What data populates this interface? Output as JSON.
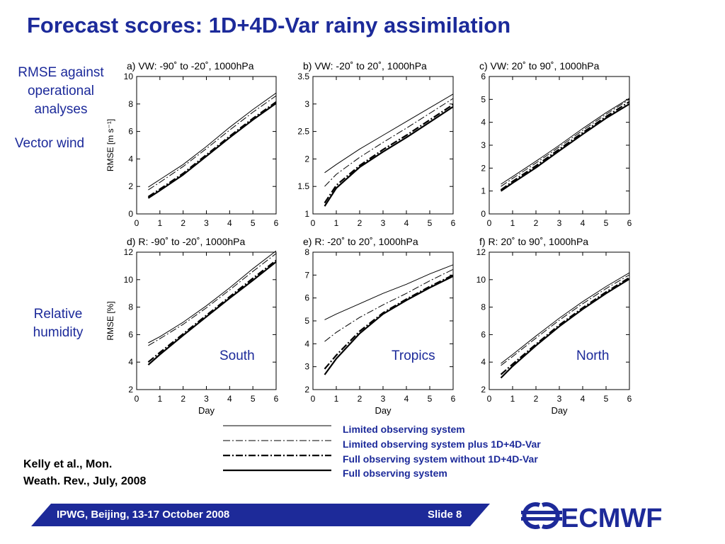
{
  "slide": {
    "title": "Forecast scores: 1D+4D-Var rainy assimilation",
    "row_labels": {
      "rmse": "RMSE against operational analyses",
      "rmse_lines": [
        "RMSE against",
        "operational",
        "analyses"
      ],
      "vector_wind": "Vector wind",
      "humidity_lines": [
        "Relative",
        "humidity"
      ]
    },
    "regions": [
      "South",
      "Tropics",
      "North"
    ],
    "reference_lines": [
      "Kelly et al., Mon.",
      "Weath. Rev., July, 2008"
    ],
    "footer": {
      "left": "IPWG, Beijing, 13-17 October 2008",
      "right": "Slide 8"
    },
    "logo_text": "ECMWF",
    "colors": {
      "accent": "#1c2a9a",
      "footer": "#1d2a99"
    }
  },
  "chart_data": [
    {
      "type": "line",
      "title": "a) VW: -90˚ to -20˚, 1000hPa",
      "xlabel": "",
      "ylabel": "RMSE [m s⁻¹]",
      "xlim": [
        0,
        6
      ],
      "ylim": [
        0,
        10
      ],
      "xticks": [
        0,
        1,
        2,
        3,
        4,
        5,
        6
      ],
      "yticks": [
        0,
        2,
        4,
        6,
        8,
        10
      ],
      "x": [
        0.5,
        1,
        2,
        3,
        4,
        5,
        6
      ],
      "series": [
        {
          "name": "Limited observing system",
          "values": [
            1.95,
            2.5,
            3.6,
            4.9,
            6.3,
            7.6,
            8.8
          ]
        },
        {
          "name": "Limited observing system plus 1D+4D-Var",
          "values": [
            1.75,
            2.3,
            3.45,
            4.75,
            6.1,
            7.4,
            8.6
          ]
        },
        {
          "name": "Full observing system without 1D+4D-Var",
          "values": [
            1.25,
            1.8,
            2.95,
            4.3,
            5.65,
            6.95,
            8.15
          ]
        },
        {
          "name": "Full observing system",
          "values": [
            1.15,
            1.7,
            2.85,
            4.2,
            5.55,
            6.85,
            8.05
          ]
        }
      ]
    },
    {
      "type": "line",
      "title": "b) VW: -20˚ to 20˚, 1000hPa",
      "xlabel": "",
      "ylabel": "",
      "xlim": [
        0,
        6
      ],
      "ylim": [
        1.0,
        3.5
      ],
      "xticks": [
        0,
        1,
        2,
        3,
        4,
        5,
        6
      ],
      "yticks": [
        1.0,
        1.5,
        2.0,
        2.5,
        3.0,
        3.5
      ],
      "x": [
        0.5,
        1,
        2,
        3,
        4,
        5,
        6
      ],
      "series": [
        {
          "name": "Limited observing system",
          "values": [
            1.75,
            1.9,
            2.18,
            2.43,
            2.68,
            2.93,
            3.18
          ]
        },
        {
          "name": "Limited observing system plus 1D+4D-Var",
          "values": [
            1.5,
            1.72,
            2.03,
            2.3,
            2.56,
            2.83,
            3.1
          ]
        },
        {
          "name": "Full observing system without 1D+4D-Var",
          "values": [
            1.2,
            1.52,
            1.88,
            2.17,
            2.43,
            2.71,
            2.99
          ]
        },
        {
          "name": "Full observing system",
          "values": [
            1.14,
            1.47,
            1.85,
            2.13,
            2.39,
            2.67,
            2.95
          ]
        }
      ]
    },
    {
      "type": "line",
      "title": "c) VW: 20˚ to 90˚, 1000hPa",
      "xlabel": "",
      "ylabel": "",
      "xlim": [
        0,
        6
      ],
      "ylim": [
        0,
        6
      ],
      "xticks": [
        0,
        1,
        2,
        3,
        4,
        5,
        6
      ],
      "yticks": [
        0,
        1,
        2,
        3,
        4,
        5,
        6
      ],
      "x": [
        0.5,
        1,
        2,
        3,
        4,
        5,
        6
      ],
      "series": [
        {
          "name": "Limited observing system",
          "values": [
            1.3,
            1.63,
            2.3,
            3.0,
            3.73,
            4.42,
            5.05
          ]
        },
        {
          "name": "Limited observing system plus 1D+4D-Var",
          "values": [
            1.2,
            1.55,
            2.22,
            2.93,
            3.65,
            4.35,
            5.0
          ]
        },
        {
          "name": "Full observing system without 1D+4D-Var",
          "values": [
            1.05,
            1.42,
            2.1,
            2.83,
            3.55,
            4.25,
            4.9
          ]
        },
        {
          "name": "Full observing system",
          "values": [
            1.0,
            1.35,
            2.02,
            2.76,
            3.48,
            4.18,
            4.8
          ]
        }
      ]
    },
    {
      "type": "line",
      "title": "d) R: -90˚ to -20˚, 1000hPa",
      "xlabel": "Day",
      "ylabel": "RMSE [%]",
      "xlim": [
        0,
        6
      ],
      "ylim": [
        2,
        12
      ],
      "xticks": [
        0,
        1,
        2,
        3,
        4,
        5,
        6
      ],
      "yticks": [
        2,
        4,
        6,
        8,
        10,
        12
      ],
      "x": [
        0.5,
        1,
        2,
        3,
        4,
        5,
        6
      ],
      "series": [
        {
          "name": "Limited observing system",
          "values": [
            5.4,
            5.85,
            6.9,
            8.1,
            9.4,
            10.8,
            12.1
          ]
        },
        {
          "name": "Limited observing system plus 1D+4D-Var",
          "values": [
            5.2,
            5.7,
            6.75,
            7.95,
            9.25,
            10.6,
            11.9
          ]
        },
        {
          "name": "Full observing system without 1D+4D-Var",
          "values": [
            4.0,
            4.7,
            6.05,
            7.4,
            8.75,
            10.1,
            11.4
          ]
        },
        {
          "name": "Full observing system",
          "values": [
            3.8,
            4.55,
            5.95,
            7.3,
            8.65,
            9.95,
            11.3
          ]
        }
      ]
    },
    {
      "type": "line",
      "title": "e) R: -20˚ to 20˚, 1000hPa",
      "xlabel": "Day",
      "ylabel": "",
      "xlim": [
        0,
        6
      ],
      "ylim": [
        2,
        8
      ],
      "xticks": [
        0,
        1,
        2,
        3,
        4,
        5,
        6
      ],
      "yticks": [
        2,
        3,
        4,
        5,
        6,
        7,
        8
      ],
      "x": [
        0.5,
        1,
        2,
        3,
        4,
        5,
        6
      ],
      "series": [
        {
          "name": "Limited observing system",
          "values": [
            5.05,
            5.3,
            5.75,
            6.2,
            6.6,
            7.05,
            7.45
          ]
        },
        {
          "name": "Limited observing system plus 1D+4D-Var",
          "values": [
            4.1,
            4.5,
            5.15,
            5.7,
            6.2,
            6.75,
            7.25
          ]
        },
        {
          "name": "Full observing system without 1D+4D-Var",
          "values": [
            2.9,
            3.5,
            4.55,
            5.35,
            5.95,
            6.5,
            7.0
          ]
        },
        {
          "name": "Full observing system",
          "values": [
            2.65,
            3.35,
            4.45,
            5.3,
            5.9,
            6.45,
            6.95
          ]
        }
      ]
    },
    {
      "type": "line",
      "title": "f) R: 20˚ to 90˚, 1000hPa",
      "xlabel": "Day",
      "ylabel": "",
      "xlim": [
        0,
        6
      ],
      "ylim": [
        2,
        12
      ],
      "xticks": [
        0,
        1,
        2,
        3,
        4,
        5,
        6
      ],
      "yticks": [
        2,
        4,
        6,
        8,
        10,
        12
      ],
      "x": [
        0.5,
        1,
        2,
        3,
        4,
        5,
        6
      ],
      "series": [
        {
          "name": "Limited observing system",
          "values": [
            3.9,
            4.55,
            5.9,
            7.2,
            8.4,
            9.5,
            10.5
          ]
        },
        {
          "name": "Limited observing system plus 1D+4D-Var",
          "values": [
            3.75,
            4.4,
            5.75,
            7.05,
            8.25,
            9.35,
            10.35
          ]
        },
        {
          "name": "Full observing system without 1D+4D-Var",
          "values": [
            3.1,
            3.85,
            5.3,
            6.7,
            7.95,
            9.1,
            10.15
          ]
        },
        {
          "name": "Full observing system",
          "values": [
            2.85,
            3.7,
            5.2,
            6.6,
            7.85,
            9.0,
            10.05
          ]
        }
      ]
    }
  ],
  "legend": {
    "position": "bottom-center",
    "entries": [
      "Limited observing system",
      "Limited observing system plus 1D+4D-Var",
      "Full observing system without 1D+4D-Var",
      "Full observing system"
    ]
  }
}
